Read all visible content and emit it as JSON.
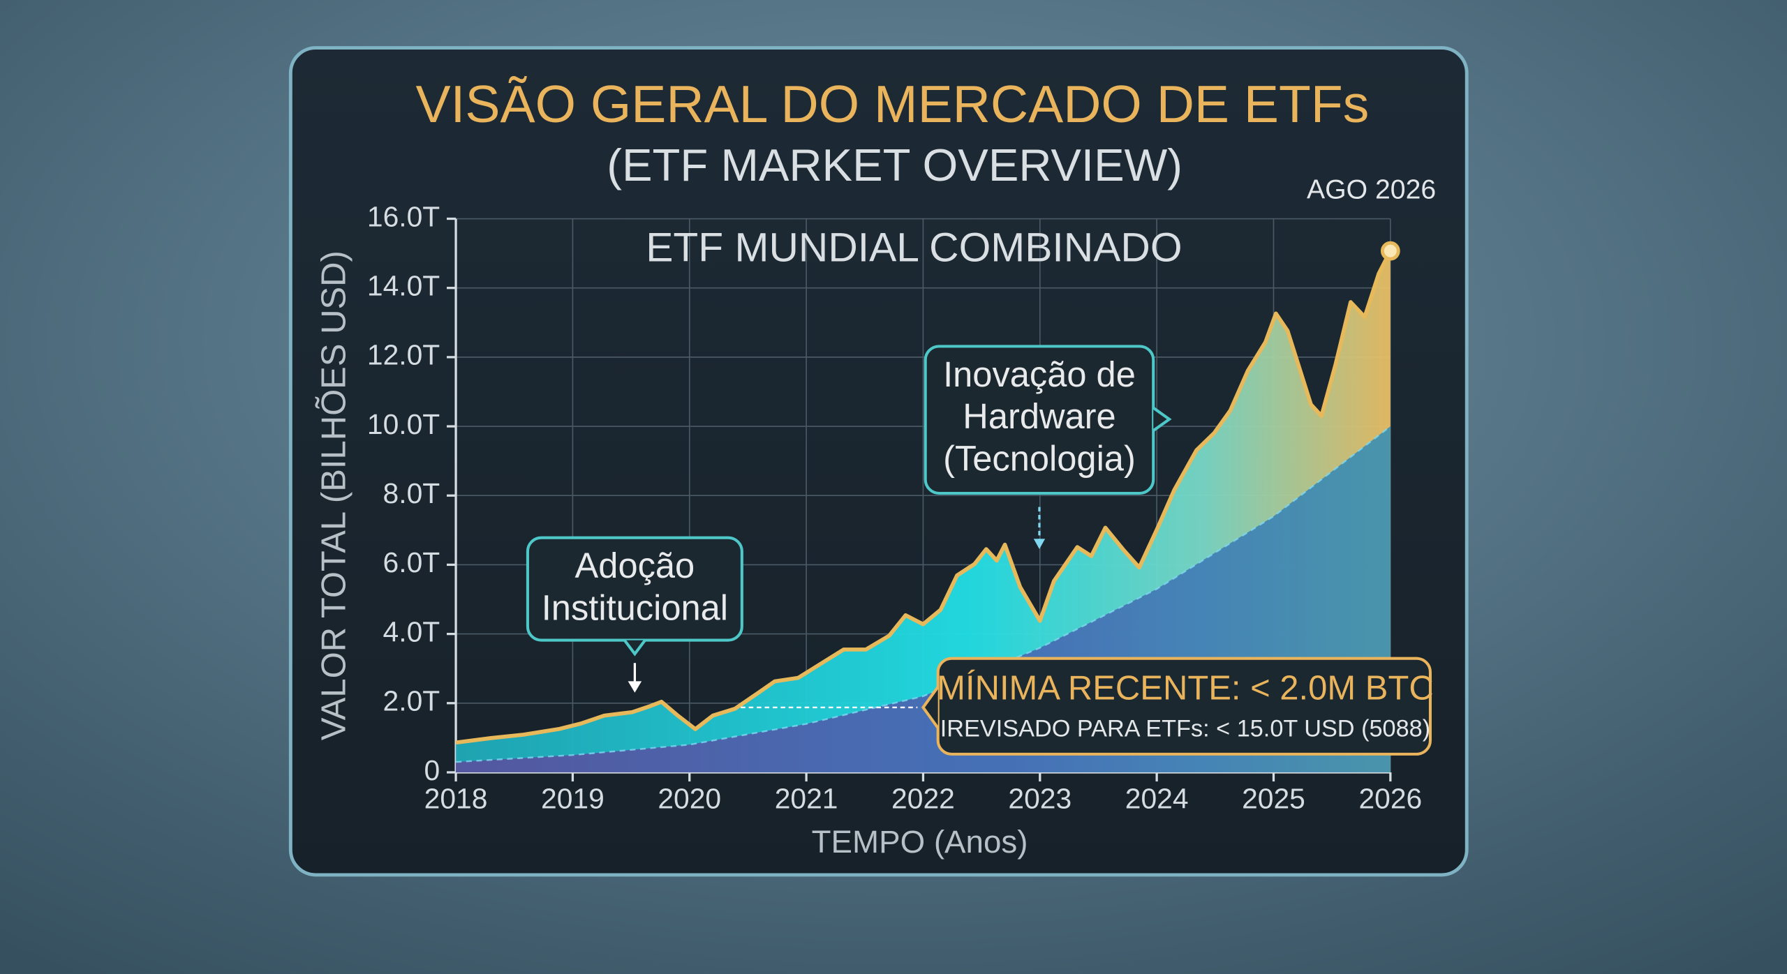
{
  "chart_data": {
    "type": "area",
    "title": "VISÃO GERAL DO MERCADO DE ETFs",
    "subtitle": "(ETF MARKET OVERVIEW)",
    "chart_subtitle": "ETF MUNDIAL COMBINADO",
    "date_label": "AGO 2026",
    "x_label": "TEMPO (Anos)",
    "y_label": "VALOR TOTAL (BILHÕES USD)",
    "xlim": [
      2018,
      2026
    ],
    "xticks": [
      2018,
      2019,
      2020,
      2021,
      2022,
      2023,
      2024,
      2025,
      2026
    ],
    "ylim": [
      0,
      16
    ],
    "yticks": [
      0,
      {
        "value": 2,
        "label": "2.0T"
      },
      {
        "value": 4,
        "label": "4.0T"
      },
      {
        "value": 6,
        "label": "6.0T"
      },
      {
        "value": 8,
        "label": "8.0T"
      },
      {
        "value": 10,
        "label": "10.0T"
      },
      {
        "value": 12,
        "label": "12.0T"
      },
      {
        "value": 14,
        "label": "14.0T"
      },
      {
        "value": 16,
        "label": "16.0T"
      }
    ],
    "grid": true,
    "series": [
      {
        "color": "#7fd8f0",
        "x": [
          2018,
          2019,
          2020,
          2021,
          2022,
          2023,
          2024,
          2025,
          2026
        ],
        "values": [
          0.3,
          0.5,
          0.8,
          1.4,
          2.2,
          3.6,
          5.3,
          7.4,
          10.0
        ]
      },
      {
        "color": "#e8b95a",
        "x": [
          2018.0,
          2018.3,
          2018.58,
          2018.88,
          2019.07,
          2019.27,
          2019.51,
          2019.66,
          2019.76,
          2019.9,
          2020.05,
          2020.2,
          2020.39,
          2020.59,
          2020.73,
          2020.93,
          2021.12,
          2021.32,
          2021.51,
          2021.71,
          2021.85,
          2022.0,
          2022.15,
          2022.29,
          2022.44,
          2022.54,
          2022.63,
          2022.7,
          2022.83,
          2023.0,
          2023.12,
          2023.32,
          2023.44,
          2023.56,
          2023.71,
          2023.85,
          2024.0,
          2024.15,
          2024.34,
          2024.49,
          2024.63,
          2024.78,
          2024.93,
          2025.02,
          2025.12,
          2025.32,
          2025.41,
          2025.53,
          2025.66,
          2025.78,
          2025.9,
          2026.0
        ],
        "values": [
          0.86,
          0.99,
          1.09,
          1.25,
          1.41,
          1.64,
          1.74,
          1.91,
          2.04,
          1.64,
          1.25,
          1.64,
          1.84,
          2.3,
          2.63,
          2.73,
          3.13,
          3.55,
          3.55,
          3.95,
          4.54,
          4.28,
          4.7,
          5.69,
          6.02,
          6.45,
          6.12,
          6.58,
          5.36,
          4.38,
          5.53,
          6.51,
          6.25,
          7.07,
          6.45,
          5.92,
          7.01,
          8.16,
          9.31,
          9.8,
          10.46,
          11.61,
          12.43,
          13.26,
          12.76,
          10.63,
          10.3,
          11.78,
          13.59,
          13.16,
          14.41,
          15.07
        ]
      }
    ],
    "annotations": [
      "Adoção",
      "Institucional",
      "Inovação de",
      "Hardware",
      "(Tecnologia)",
      "MÍNIMA RECENTE: < 2.0M BTC",
      "IREVISADO PARA ETFs: < 15.0T USD (5088)"
    ]
  }
}
